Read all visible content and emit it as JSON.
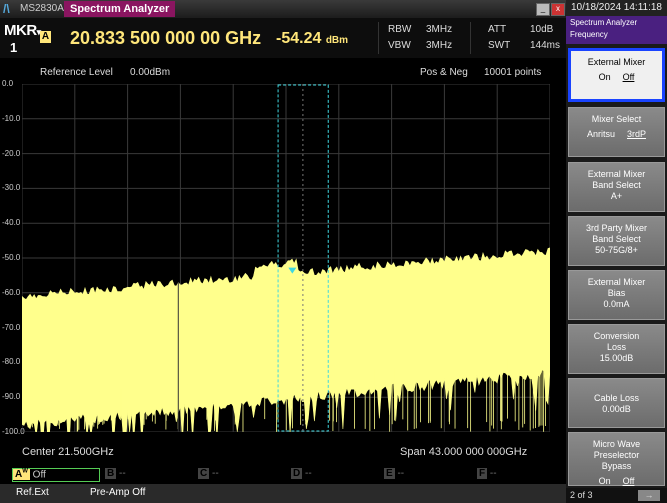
{
  "titlebar": {
    "model": "MS2830A",
    "app": "Spectrum Analyzer",
    "minimize": "_",
    "close": "x"
  },
  "marker": {
    "label": "MKR",
    "number": "1",
    "badge": "A",
    "frequency": "20.833 500 000 00 GHz",
    "level": "-54.24",
    "level_unit": "dBm"
  },
  "params": {
    "rbw_label": "RBW",
    "rbw_value": "3MHz",
    "vbw_label": "VBW",
    "vbw_value": "3MHz",
    "att_label": "ATT",
    "att_value": "10dB",
    "swt_label": "SWT",
    "swt_value": "144ms"
  },
  "graph": {
    "ref_label": "Reference Level",
    "ref_value": "0.00dBm",
    "detector": "Pos & Neg",
    "points": "10001 points",
    "y_ticks": [
      "0.0",
      "-10.0",
      "-20.0",
      "-30.0",
      "-40.0",
      "-50.0",
      "-60.0",
      "-70.0",
      "-80.0",
      "-90.0",
      "-100.0"
    ],
    "center": "Center 21.500GHz",
    "span": "Span 43.000 000 000GHz",
    "trace_color": "#ffff8c"
  },
  "traces": [
    {
      "label": "A",
      "sup": "W",
      "state": "Off"
    },
    {
      "label": "B",
      "state": "--"
    },
    {
      "label": "C",
      "state": "--"
    },
    {
      "label": "D",
      "state": "--"
    },
    {
      "label": "E",
      "state": "--"
    },
    {
      "label": "F",
      "state": "--"
    }
  ],
  "status": {
    "ref": "Ref.Ext",
    "preamp": "Pre-Amp Off"
  },
  "side": {
    "datetime": "10/18/2024 14:11:18",
    "header_title": "Spectrum Analyzer",
    "header_sub": "Frequency",
    "buttons": [
      {
        "line1": "External Mixer",
        "on": "On",
        "off": "Off"
      },
      {
        "line1": "Mixer Select",
        "on": "Anritsu",
        "off": "3rdP"
      },
      {
        "line1": "External Mixer",
        "line2": "Band Select",
        "line3": "A+"
      },
      {
        "line1": "3rd Party Mixer",
        "line2": "Band Select",
        "line3": "50-75G/8+"
      },
      {
        "line1": "External Mixer",
        "line2": "Bias",
        "line3": "0.0mA"
      },
      {
        "line1": "Conversion",
        "line2": "Loss",
        "line3": "15.00dB"
      },
      {
        "line1": "Cable Loss",
        "line3": "0.00dB"
      },
      {
        "line1": "Micro Wave",
        "line2": "Preselector",
        "line3": "Bypass",
        "on": "On",
        "off": "Off"
      }
    ],
    "page": "2 of 3"
  }
}
